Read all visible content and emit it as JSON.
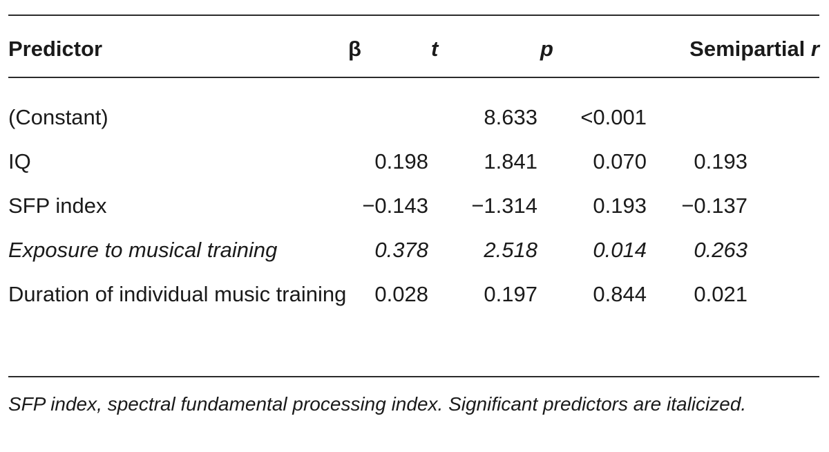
{
  "table": {
    "headers": {
      "predictor": "Predictor",
      "beta": "β",
      "t": "t",
      "p": "p",
      "semipartial_main": "Semipartial ",
      "semipartial_r": "r"
    },
    "rows": [
      {
        "predictor": "(Constant)",
        "beta": "",
        "t": "8.633",
        "p": "<0.001",
        "r": ""
      },
      {
        "predictor": "IQ",
        "beta": "0.198",
        "t": "1.841",
        "p": "0.070",
        "r": "0.193"
      },
      {
        "predictor": "SFP index",
        "beta": "−0.143",
        "t": "−1.314",
        "p": "0.193",
        "r": "−0.137"
      },
      {
        "predictor": "Exposure to musical training",
        "beta": "0.378",
        "t": "2.518",
        "p": "0.014",
        "r": "0.263"
      },
      {
        "predictor": "Duration of individual music training",
        "beta": "0.028",
        "t": "0.197",
        "p": "0.844",
        "r": "0.021"
      }
    ]
  },
  "footnote": "SFP index, spectral fundamental processing index. Significant predictors are italicized."
}
